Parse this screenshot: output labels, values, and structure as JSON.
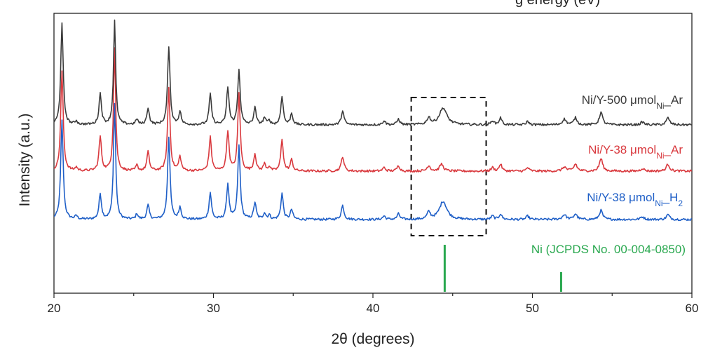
{
  "chart_data": {
    "type": "line",
    "title": "",
    "top_text_fragment": "g energy (eV)",
    "xlabel": "2θ (degrees)",
    "ylabel": "Intensity (a.u.)",
    "xlim": [
      20,
      60
    ],
    "x_ticks": [
      20,
      30,
      40,
      50,
      60
    ],
    "x_minor_step": 5,
    "y_ticks_shown": false,
    "grid": false,
    "colors": {
      "h2": "#1f5fc7",
      "ar38": "#d9393e",
      "ar500": "#3a3a3a",
      "ref": "#29a84f"
    },
    "series": [
      {
        "name_main": "Ni/Y-38 μmol",
        "name_sub": "Ni",
        "name_tail": "_H",
        "name_sub2": "2",
        "color": "#1f5fc7",
        "baseline": 72,
        "peaks": [
          {
            "x": 20.5,
            "h": 141,
            "w": 0.09
          },
          {
            "x": 21.4,
            "h": 5,
            "w": 0.08
          },
          {
            "x": 22.9,
            "h": 36,
            "w": 0.09
          },
          {
            "x": 23.8,
            "h": 165,
            "w": 0.08
          },
          {
            "x": 25.2,
            "h": 8,
            "w": 0.08
          },
          {
            "x": 25.9,
            "h": 20,
            "w": 0.09
          },
          {
            "x": 27.2,
            "h": 118,
            "w": 0.09
          },
          {
            "x": 27.9,
            "h": 17,
            "w": 0.09
          },
          {
            "x": 29.8,
            "h": 38,
            "w": 0.09
          },
          {
            "x": 30.9,
            "h": 50,
            "w": 0.09
          },
          {
            "x": 31.6,
            "h": 105,
            "w": 0.09
          },
          {
            "x": 32.6,
            "h": 24,
            "w": 0.09
          },
          {
            "x": 33.2,
            "h": 9,
            "w": 0.09
          },
          {
            "x": 33.5,
            "h": 6,
            "w": 0.08
          },
          {
            "x": 34.3,
            "h": 37,
            "w": 0.09
          },
          {
            "x": 34.9,
            "h": 14,
            "w": 0.09
          },
          {
            "x": 38.1,
            "h": 20,
            "w": 0.1
          },
          {
            "x": 40.7,
            "h": 5,
            "w": 0.1
          },
          {
            "x": 41.6,
            "h": 8,
            "w": 0.1
          },
          {
            "x": 43.5,
            "h": 10,
            "w": 0.12
          },
          {
            "x": 44.4,
            "h": 26,
            "w": 0.28
          },
          {
            "x": 47.5,
            "h": 5,
            "w": 0.1
          },
          {
            "x": 48.0,
            "h": 8,
            "w": 0.1
          },
          {
            "x": 49.7,
            "h": 5,
            "w": 0.1
          },
          {
            "x": 52.0,
            "h": 7,
            "w": 0.14
          },
          {
            "x": 52.7,
            "h": 8,
            "w": 0.12
          },
          {
            "x": 54.3,
            "h": 13,
            "w": 0.12
          },
          {
            "x": 56.9,
            "h": 4,
            "w": 0.12
          },
          {
            "x": 58.5,
            "h": 7,
            "w": 0.12
          }
        ]
      },
      {
        "name_main": "Ni/Y-38 μmol",
        "name_sub": "Ni",
        "name_tail": "_Ar",
        "name_sub2": "",
        "color": "#d9393e",
        "baseline": 10,
        "peaks": [
          {
            "x": 20.5,
            "h": 143,
            "w": 0.09
          },
          {
            "x": 21.4,
            "h": 5,
            "w": 0.08
          },
          {
            "x": 22.9,
            "h": 49,
            "w": 0.09
          },
          {
            "x": 23.8,
            "h": 175,
            "w": 0.08
          },
          {
            "x": 25.2,
            "h": 8,
            "w": 0.08
          },
          {
            "x": 25.9,
            "h": 27,
            "w": 0.09
          },
          {
            "x": 27.2,
            "h": 119,
            "w": 0.09
          },
          {
            "x": 27.9,
            "h": 20,
            "w": 0.09
          },
          {
            "x": 29.8,
            "h": 48,
            "w": 0.09
          },
          {
            "x": 30.9,
            "h": 57,
            "w": 0.09
          },
          {
            "x": 31.6,
            "h": 111,
            "w": 0.09
          },
          {
            "x": 32.6,
            "h": 24,
            "w": 0.09
          },
          {
            "x": 33.2,
            "h": 10,
            "w": 0.09
          },
          {
            "x": 33.5,
            "h": 6,
            "w": 0.08
          },
          {
            "x": 34.3,
            "h": 45,
            "w": 0.09
          },
          {
            "x": 34.9,
            "h": 16,
            "w": 0.09
          },
          {
            "x": 38.1,
            "h": 21,
            "w": 0.1
          },
          {
            "x": 40.7,
            "h": 5,
            "w": 0.1
          },
          {
            "x": 41.6,
            "h": 8,
            "w": 0.1
          },
          {
            "x": 43.5,
            "h": 8,
            "w": 0.12
          },
          {
            "x": 44.3,
            "h": 10,
            "w": 0.14
          },
          {
            "x": 47.5,
            "h": 5,
            "w": 0.1
          },
          {
            "x": 48.0,
            "h": 10,
            "w": 0.1
          },
          {
            "x": 49.7,
            "h": 5,
            "w": 0.1
          },
          {
            "x": 52.0,
            "h": 6,
            "w": 0.14
          },
          {
            "x": 52.7,
            "h": 10,
            "w": 0.12
          },
          {
            "x": 54.3,
            "h": 18,
            "w": 0.12
          },
          {
            "x": 56.9,
            "h": 4,
            "w": 0.12
          },
          {
            "x": 58.5,
            "h": 10,
            "w": 0.12
          }
        ]
      },
      {
        "name_main": "Ni/Y-500 μmol",
        "name_sub": "Ni",
        "name_tail": "_Ar",
        "name_sub2": "",
        "color": "#3a3a3a",
        "baseline": 0,
        "peaks": [
          {
            "x": 20.5,
            "h": 144,
            "w": 0.09
          },
          {
            "x": 21.4,
            "h": 5,
            "w": 0.08
          },
          {
            "x": 22.9,
            "h": 44,
            "w": 0.09
          },
          {
            "x": 23.8,
            "h": 148,
            "w": 0.08
          },
          {
            "x": 25.2,
            "h": 8,
            "w": 0.08
          },
          {
            "x": 25.9,
            "h": 24,
            "w": 0.09
          },
          {
            "x": 27.2,
            "h": 112,
            "w": 0.09
          },
          {
            "x": 27.9,
            "h": 18,
            "w": 0.09
          },
          {
            "x": 29.8,
            "h": 43,
            "w": 0.09
          },
          {
            "x": 30.9,
            "h": 53,
            "w": 0.09
          },
          {
            "x": 31.6,
            "h": 79,
            "w": 0.09
          },
          {
            "x": 32.6,
            "h": 24,
            "w": 0.09
          },
          {
            "x": 33.2,
            "h": 10,
            "w": 0.09
          },
          {
            "x": 33.5,
            "h": 6,
            "w": 0.08
          },
          {
            "x": 34.3,
            "h": 41,
            "w": 0.09
          },
          {
            "x": 34.9,
            "h": 16,
            "w": 0.09
          },
          {
            "x": 38.1,
            "h": 20,
            "w": 0.1
          },
          {
            "x": 40.7,
            "h": 6,
            "w": 0.1
          },
          {
            "x": 41.6,
            "h": 8,
            "w": 0.1
          },
          {
            "x": 43.5,
            "h": 10,
            "w": 0.12
          },
          {
            "x": 44.4,
            "h": 24,
            "w": 0.28
          },
          {
            "x": 47.5,
            "h": 6,
            "w": 0.1
          },
          {
            "x": 48.0,
            "h": 10,
            "w": 0.1
          },
          {
            "x": 49.7,
            "h": 5,
            "w": 0.1
          },
          {
            "x": 52.0,
            "h": 8,
            "w": 0.14
          },
          {
            "x": 52.7,
            "h": 10,
            "w": 0.12
          },
          {
            "x": 54.3,
            "h": 18,
            "w": 0.12
          },
          {
            "x": 56.9,
            "h": 4,
            "w": 0.12
          },
          {
            "x": 58.5,
            "h": 10,
            "w": 0.12
          }
        ]
      }
    ],
    "reference": {
      "name": "Ni (JCPDS No. 00-004-0850)",
      "color": "#29a84f",
      "lines": [
        {
          "x": 44.5,
          "h": 100
        },
        {
          "x": 51.8,
          "h": 42
        }
      ]
    },
    "highlight_box": {
      "x0": 42.4,
      "x1": 47.1,
      "style": "dashed"
    }
  }
}
